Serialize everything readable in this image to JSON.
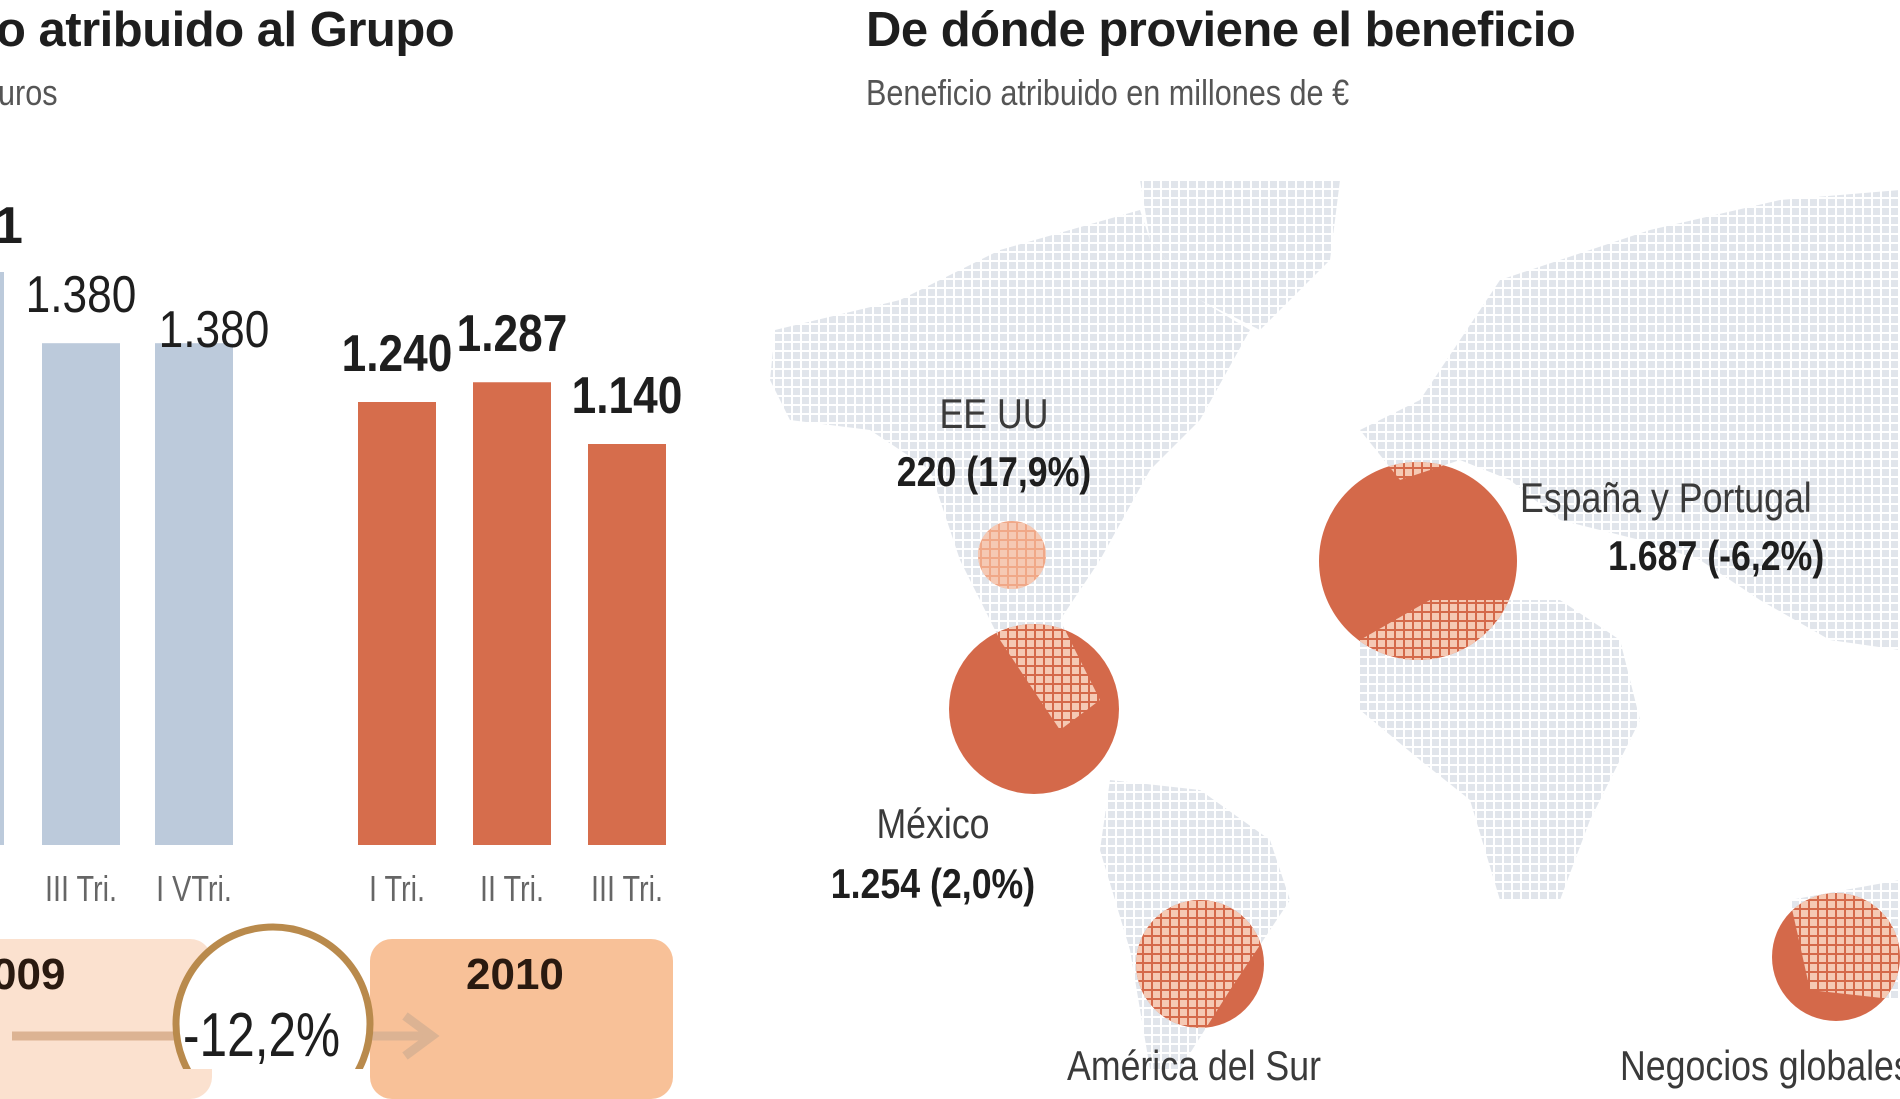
{
  "left_panel": {
    "title": "o atribuido al Grupo",
    "subtitle": "uros",
    "partial_value_label": "1",
    "year_2009": "009",
    "year_2010": "2010",
    "change": "-12,2%"
  },
  "chart_data": {
    "type": "bar",
    "title": "o atribuido al Grupo",
    "categories": [
      "III Tri.",
      "I VTri.",
      "I Tri.",
      "II Tri.",
      "III Tri."
    ],
    "values": [
      1380,
      1380,
      1240,
      1287,
      1140
    ],
    "value_labels": [
      "1.380",
      "1.380",
      "1.240",
      "1.287",
      "1.140"
    ],
    "groups": [
      "2009",
      "2009",
      "2010",
      "2010",
      "2010"
    ],
    "xlabel": "",
    "ylabel": "",
    "change_label": "-12,2%"
  },
  "map_panel": {
    "title": "De dónde proviene el beneficio",
    "subtitle": "Beneficio atribuido en millones de €",
    "regions": [
      {
        "name": "EE UU",
        "value": "220 (17,9%)"
      },
      {
        "name": "España y Portugal",
        "value": "1.687 (-6,2%)"
      },
      {
        "name": "México",
        "value": "1.254 (2,0%)"
      },
      {
        "name": "América del Sur",
        "value": ""
      },
      {
        "name": "Negocios globales",
        "value": ""
      }
    ]
  },
  "colors": {
    "bar_2009": "#bccadb",
    "bar_2010": "#d66d4c",
    "box_2009": "#fbe1cf",
    "box_2010": "#f8c198",
    "circle": "#d4694a",
    "circle_dots": "#f5c9b4",
    "map_dots": "#e1e5eb",
    "ring": "#b98a4c",
    "arrow": "#dcb393"
  }
}
